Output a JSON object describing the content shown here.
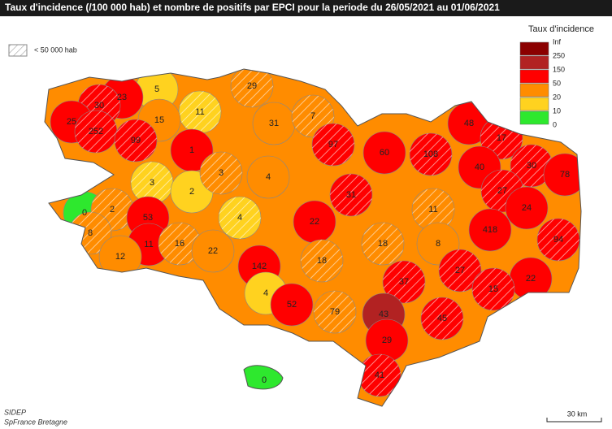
{
  "header": {
    "title": "Taux d'incidence (/100 000 hab) et nombre de positifs par EPCI pour la periode du 26/05/2021 au 01/06/2021"
  },
  "hatch_legend": {
    "label": "< 50 000 hab"
  },
  "legend": {
    "title": "Taux d'incidence",
    "colors": [
      "#8b0000",
      "#b22222",
      "#ff0000",
      "#ff8c00",
      "#ffd21f",
      "#2ee82e"
    ],
    "labels": [
      "Inf",
      "250",
      "150",
      "50",
      "20",
      "10",
      "0"
    ]
  },
  "regions": [
    {
      "label": 29,
      "color": "#ff8c00"
    },
    {
      "label": 5,
      "color": "#ffd21f"
    },
    {
      "label": 11,
      "color": "#ffd21f"
    },
    {
      "label": 31,
      "color": "#ff8c00"
    },
    {
      "label": 7,
      "color": "#ff8c00"
    },
    {
      "label": 23,
      "color": "#ff0000"
    },
    {
      "label": 30,
      "color": "#ff0000"
    },
    {
      "label": 25,
      "color": "#ff0000"
    },
    {
      "label": 252,
      "color": "#ff0000"
    },
    {
      "label": 15,
      "color": "#ff8c00"
    },
    {
      "label": 99,
      "color": "#ff0000"
    },
    {
      "label": 1,
      "color": "#ff0000"
    },
    {
      "label": 3,
      "color": "#ffd21f"
    },
    {
      "label": 2,
      "color": "#ffd21f"
    },
    {
      "label": 3,
      "color": "#ff8c00"
    },
    {
      "label": 4,
      "color": "#ff8c00"
    },
    {
      "label": 97,
      "color": "#ff0000"
    },
    {
      "label": 60,
      "color": "#ff0000"
    },
    {
      "label": 108,
      "color": "#ff0000"
    },
    {
      "label": 48,
      "color": "#ff0000"
    },
    {
      "label": 17,
      "color": "#ff0000"
    },
    {
      "label": 40,
      "color": "#ff0000"
    },
    {
      "label": 30,
      "color": "#ff0000"
    },
    {
      "label": 78,
      "color": "#ff0000"
    },
    {
      "label": 27,
      "color": "#ff0000"
    },
    {
      "label": 24,
      "color": "#ff0000"
    },
    {
      "label": 31,
      "color": "#ff0000"
    },
    {
      "label": 0,
      "color": "#2ee82e"
    },
    {
      "label": 2,
      "color": "#ff8c00"
    },
    {
      "label": 53,
      "color": "#ff0000"
    },
    {
      "label": 4,
      "color": "#ffd21f"
    },
    {
      "label": 22,
      "color": "#ff0000"
    },
    {
      "label": 11,
      "color": "#ff8c00"
    },
    {
      "label": 418,
      "color": "#ff0000"
    },
    {
      "label": 8,
      "color": "#ff8c00"
    },
    {
      "label": 11,
      "color": "#ff0000"
    },
    {
      "label": 16,
      "color": "#ff8c00"
    },
    {
      "label": 22,
      "color": "#ff8c00"
    },
    {
      "label": 18,
      "color": "#ff8c00"
    },
    {
      "label": 8,
      "color": "#ff8c00"
    },
    {
      "label": 94,
      "color": "#ff0000"
    },
    {
      "label": 12,
      "color": "#ff8c00"
    },
    {
      "label": 18,
      "color": "#ff8c00"
    },
    {
      "label": 142,
      "color": "#ff0000"
    },
    {
      "label": 27,
      "color": "#ff0000"
    },
    {
      "label": 22,
      "color": "#ff0000"
    },
    {
      "label": 37,
      "color": "#ff0000"
    },
    {
      "label": 4,
      "color": "#ffd21f"
    },
    {
      "label": 15,
      "color": "#ff0000"
    },
    {
      "label": 52,
      "color": "#ff0000"
    },
    {
      "label": 79,
      "color": "#ff8c00"
    },
    {
      "label": 43,
      "color": "#b22222"
    },
    {
      "label": 45,
      "color": "#ff0000"
    },
    {
      "label": 29,
      "color": "#ff0000"
    },
    {
      "label": 41,
      "color": "#ff0000"
    },
    {
      "label": 0,
      "color": "#2ee82e"
    }
  ],
  "source": [
    "SIDEP",
    "SpFrance Bretagne"
  ],
  "scale": "30 km"
}
